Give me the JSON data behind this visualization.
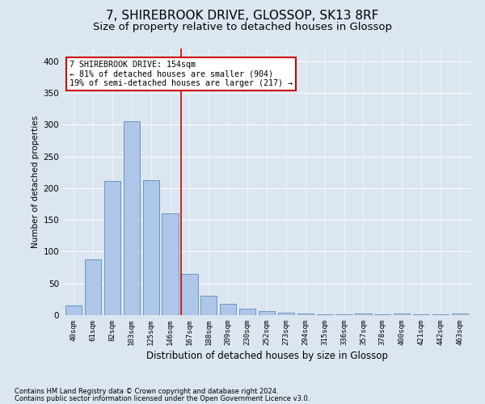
{
  "title1": "7, SHIREBROOK DRIVE, GLOSSOP, SK13 8RF",
  "title2": "Size of property relative to detached houses in Glossop",
  "xlabel": "Distribution of detached houses by size in Glossop",
  "ylabel": "Number of detached properties",
  "categories": [
    "40sqm",
    "61sqm",
    "82sqm",
    "103sqm",
    "125sqm",
    "146sqm",
    "167sqm",
    "188sqm",
    "209sqm",
    "230sqm",
    "252sqm",
    "273sqm",
    "294sqm",
    "315sqm",
    "336sqm",
    "357sqm",
    "378sqm",
    "400sqm",
    "421sqm",
    "442sqm",
    "463sqm"
  ],
  "values": [
    15,
    88,
    211,
    305,
    212,
    160,
    65,
    30,
    18,
    10,
    6,
    4,
    2,
    1,
    1,
    3,
    1,
    2,
    1,
    1,
    3
  ],
  "bar_color": "#aec6e8",
  "bar_edge_color": "#5b8db8",
  "vline_x": 5.57,
  "vline_color": "#cc0000",
  "annotation_title": "7 SHIREBROOK DRIVE: 154sqm",
  "annotation_line2": "← 81% of detached houses are smaller (904)",
  "annotation_line3": "19% of semi-detached houses are larger (217) →",
  "annotation_box_color": "#cc0000",
  "annotation_box_bg": "#ffffff",
  "footnote1": "Contains HM Land Registry data © Crown copyright and database right 2024.",
  "footnote2": "Contains public sector information licensed under the Open Government Licence v3.0.",
  "ylim": [
    0,
    420
  ],
  "yticks": [
    0,
    50,
    100,
    150,
    200,
    250,
    300,
    350,
    400
  ],
  "fig_bg_color": "#dce6f0",
  "plot_bg_color": "#dce6f0",
  "title1_fontsize": 11,
  "title2_fontsize": 9.5
}
